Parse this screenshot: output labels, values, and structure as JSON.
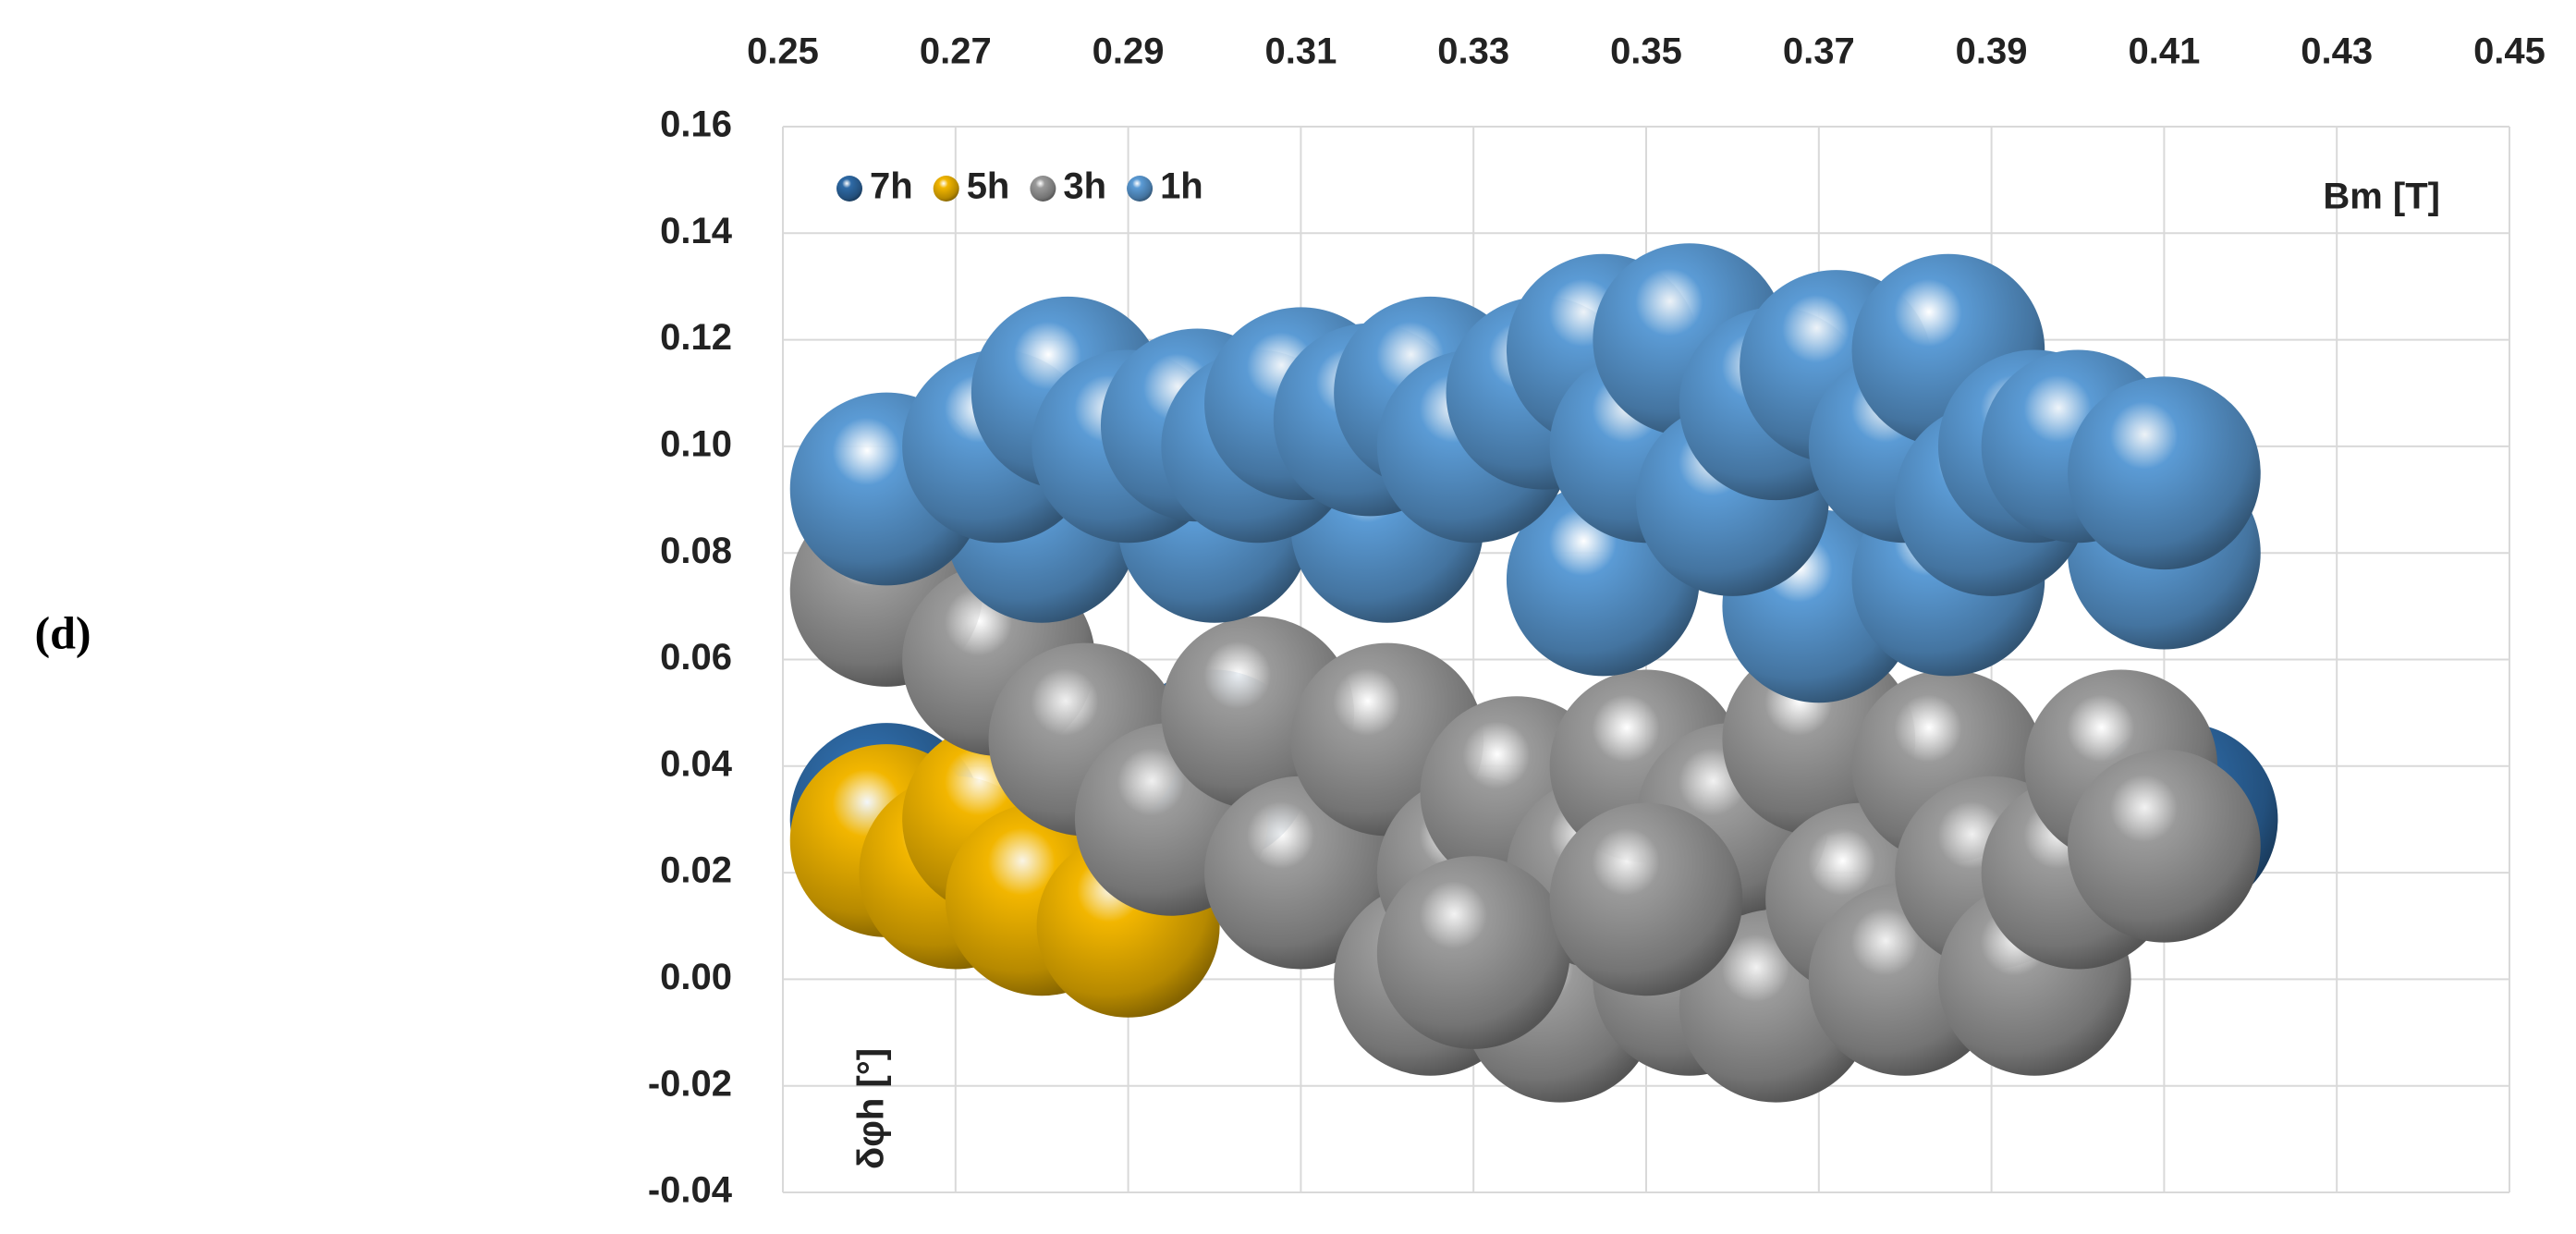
{
  "chart_data": {
    "type": "bubble",
    "panel_label": "(d)",
    "x_label": "Bm [T]",
    "y_label": "δφh [°]",
    "xlim": [
      0.25,
      0.45
    ],
    "xticks": [
      0.25,
      0.27,
      0.29,
      0.31,
      0.33,
      0.35,
      0.37,
      0.39,
      0.41,
      0.43,
      0.45
    ],
    "ylim": [
      -0.04,
      0.16
    ],
    "yticks": [
      {
        "value": -0.04,
        "label": "-0.04"
      },
      {
        "value": -0.02,
        "label": "-0.02"
      },
      {
        "value": 0,
        "label": "0.00"
      },
      {
        "value": 0.02,
        "label": "0.02"
      },
      {
        "value": 0.04,
        "label": "0.04"
      },
      {
        "value": 0.06,
        "label": "0.06"
      },
      {
        "value": 0.08,
        "label": "0.08"
      },
      {
        "value": 0.1,
        "label": "0.10"
      },
      {
        "value": 0.12,
        "label": "0.12"
      },
      {
        "value": 0.14,
        "label": "0.14"
      },
      {
        "value": 0.16,
        "label": "0.16"
      }
    ],
    "grid": true,
    "legend": "upper left",
    "series": [
      {
        "name": "7h",
        "color": "#2e6aa6",
        "x": [
          0.262,
          0.3,
          0.412
        ],
        "values": [
          0.03,
          0.04,
          0.03
        ],
        "sizes": [
          10,
          10,
          10
        ]
      },
      {
        "name": "5h",
        "color": "#f2b600",
        "x": [
          0.262,
          0.27,
          0.275,
          0.28,
          0.29
        ],
        "values": [
          0.026,
          0.02,
          0.03,
          0.015,
          0.01
        ],
        "sizes": [
          10,
          10,
          10,
          10,
          9
        ]
      },
      {
        "name": "3h",
        "color": "#9a9a9a",
        "x": [
          0.262,
          0.275,
          0.285,
          0.295,
          0.305,
          0.31,
          0.32,
          0.325,
          0.33,
          0.335,
          0.34,
          0.345,
          0.35,
          0.355,
          0.36,
          0.365,
          0.37,
          0.375,
          0.38,
          0.385,
          0.39,
          0.395,
          0.4,
          0.405,
          0.41,
          0.33,
          0.35
        ],
        "values": [
          0.073,
          0.06,
          0.045,
          0.03,
          0.05,
          0.02,
          0.045,
          0,
          0.02,
          0.035,
          -0.005,
          0.02,
          0.04,
          0,
          0.03,
          -0.005,
          0.045,
          0.015,
          0,
          0.04,
          0.02,
          0,
          0.02,
          0.04,
          0.025,
          0.005,
          0.015
        ],
        "sizes": [
          10,
          10,
          10,
          10,
          10,
          10,
          10,
          10,
          10,
          10,
          10,
          10,
          10,
          10,
          10,
          10,
          10,
          10,
          10,
          10,
          10,
          10,
          10,
          10,
          10,
          10,
          10
        ]
      },
      {
        "name": "1h",
        "color": "#5b9bd5",
        "x": [
          0.28,
          0.3,
          0.32,
          0.345,
          0.37,
          0.385,
          0.41,
          0.262,
          0.275,
          0.283,
          0.29,
          0.298,
          0.305,
          0.31,
          0.318,
          0.325,
          0.33,
          0.338,
          0.345,
          0.35,
          0.355,
          0.36,
          0.365,
          0.372,
          0.38,
          0.385,
          0.39,
          0.395,
          0.4,
          0.41
        ],
        "values": [
          0.085,
          0.085,
          0.085,
          0.075,
          0.07,
          0.075,
          0.08,
          0.092,
          0.1,
          0.11,
          0.1,
          0.104,
          0.1,
          0.108,
          0.105,
          0.11,
          0.1,
          0.11,
          0.118,
          0.1,
          0.12,
          0.09,
          0.108,
          0.115,
          0.1,
          0.118,
          0.09,
          0.1,
          0.1,
          0.095
        ],
        "sizes": [
          10,
          10,
          10,
          10,
          10,
          10,
          10,
          10,
          10,
          10,
          10,
          10,
          10,
          10,
          10,
          10,
          10,
          10,
          10,
          10,
          10,
          10,
          10,
          10,
          10,
          10,
          10,
          10,
          10,
          10
        ]
      }
    ]
  }
}
